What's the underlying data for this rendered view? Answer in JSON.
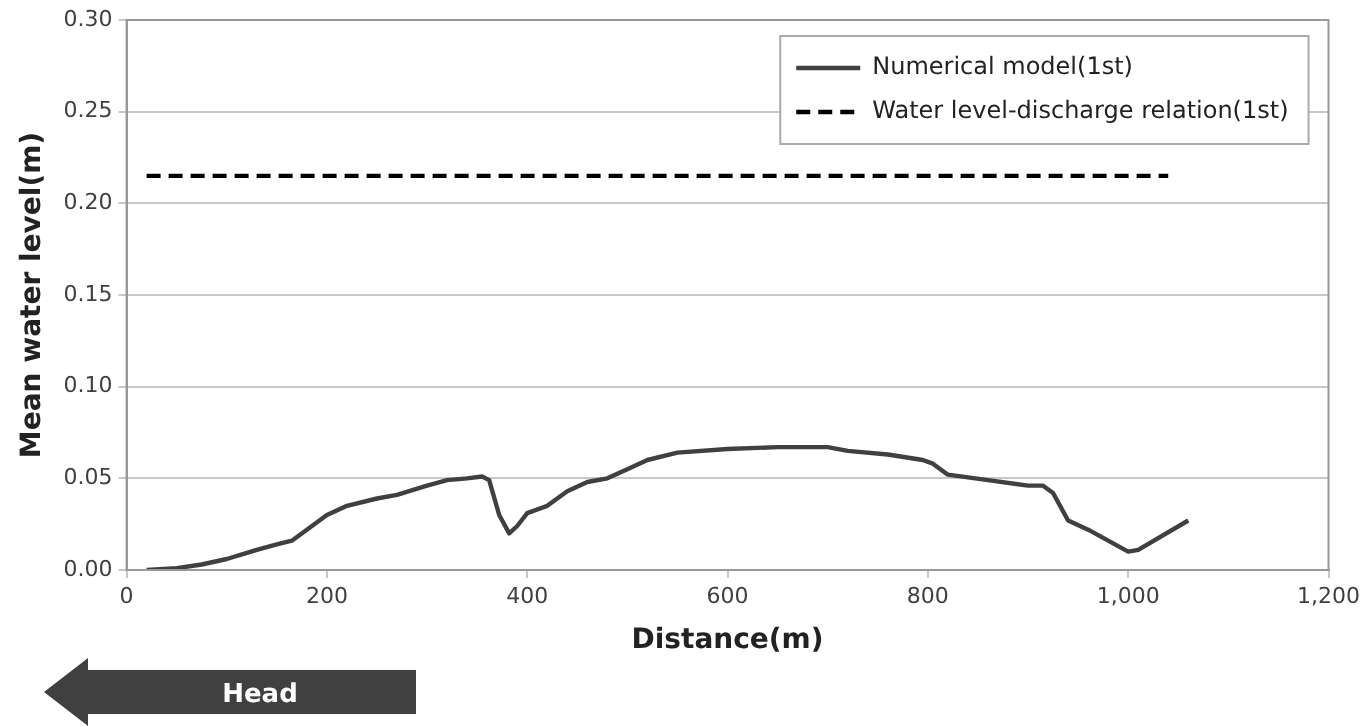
{
  "chart_data": {
    "type": "line",
    "xlabel": "Distance(m)",
    "ylabel": "Mean water level(m)",
    "xlim": [
      0,
      1200
    ],
    "xticks": [
      0,
      200,
      400,
      600,
      800,
      {
        "value": 1000,
        "label": "1,000"
      },
      {
        "value": 1200,
        "label": "1,200"
      }
    ],
    "ylim": [
      0,
      0.3
    ],
    "yticks": [
      {
        "value": 0,
        "label": "0.00"
      },
      {
        "value": 0.05,
        "label": "0.05"
      },
      {
        "value": 0.1,
        "label": "0.10"
      },
      {
        "value": 0.15,
        "label": "0.15"
      },
      {
        "value": 0.2,
        "label": "0.20"
      },
      {
        "value": 0.25,
        "label": "0.25"
      },
      {
        "value": 0.3,
        "label": "0.30"
      }
    ],
    "grid": "y",
    "legend": "top right",
    "marker": "none",
    "annotations": [
      "Head"
    ],
    "series": [
      {
        "name": "Numerical model(1st)",
        "color": "#404040",
        "line_style": "solid",
        "x": [
          20,
          50,
          75,
          100,
          130,
          150,
          165,
          180,
          200,
          220,
          250,
          270,
          300,
          320,
          340,
          355,
          362,
          372,
          382,
          390,
          400,
          420,
          440,
          460,
          480,
          500,
          520,
          550,
          600,
          650,
          700,
          720,
          760,
          795,
          805,
          820,
          860,
          900,
          915,
          925,
          940,
          960,
          1000,
          1010,
          1060
        ],
        "values": [
          0,
          0.001,
          0.003,
          0.006,
          0.011,
          0.014,
          0.016,
          0.022,
          0.03,
          0.035,
          0.039,
          0.041,
          0.046,
          0.049,
          0.05,
          0.051,
          0.049,
          0.03,
          0.02,
          0.024,
          0.031,
          0.035,
          0.043,
          0.048,
          0.05,
          0.055,
          0.06,
          0.064,
          0.066,
          0.067,
          0.067,
          0.065,
          0.063,
          0.06,
          0.058,
          0.052,
          0.049,
          0.046,
          0.046,
          0.042,
          0.027,
          0.022,
          0.01,
          0.011,
          0.027
        ]
      },
      {
        "name": "Water level-discharge relation(1st)",
        "color": "#000000",
        "line_style": "dashed",
        "x": [
          20,
          1040
        ],
        "values": [
          0.215,
          0.215
        ]
      }
    ]
  }
}
